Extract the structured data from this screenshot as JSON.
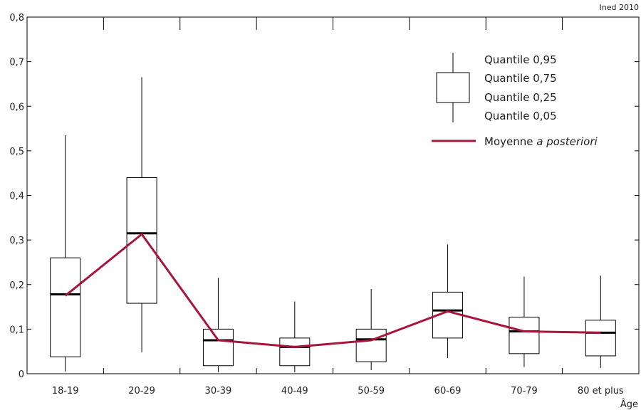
{
  "source": "Ined 2010",
  "chart_data": {
    "type": "boxplot",
    "xlabel": "Âge",
    "ylabel": "",
    "ylim": [
      0,
      0.8
    ],
    "yticks": [
      0,
      0.1,
      0.2,
      0.3,
      0.4,
      0.5,
      0.6,
      0.7,
      0.8
    ],
    "ytick_labels": [
      "0",
      "0,1",
      "0,2",
      "0,3",
      "0,4",
      "0,5",
      "0,6",
      "0,7",
      "0,8"
    ],
    "categories": [
      "18-19",
      "20-29",
      "30-39",
      "40-49",
      "50-59",
      "60-69",
      "70-79",
      "80 et plus"
    ],
    "boxes": [
      {
        "q05": 0.005,
        "q25": 0.038,
        "median": 0.178,
        "q75": 0.26,
        "q95": 0.535
      },
      {
        "q05": 0.048,
        "q25": 0.158,
        "median": 0.315,
        "q75": 0.44,
        "q95": 0.665
      },
      {
        "q05": 0.003,
        "q25": 0.018,
        "median": 0.075,
        "q75": 0.1,
        "q95": 0.215
      },
      {
        "q05": 0.003,
        "q25": 0.018,
        "median": 0.06,
        "q75": 0.08,
        "q95": 0.162
      },
      {
        "q05": 0.008,
        "q25": 0.027,
        "median": 0.077,
        "q75": 0.1,
        "q95": 0.19
      },
      {
        "q05": 0.035,
        "q25": 0.08,
        "median": 0.142,
        "q75": 0.183,
        "q95": 0.29
      },
      {
        "q05": 0.015,
        "q25": 0.045,
        "median": 0.095,
        "q75": 0.127,
        "q95": 0.218
      },
      {
        "q05": 0.013,
        "q25": 0.04,
        "median": 0.092,
        "q75": 0.12,
        "q95": 0.22
      }
    ],
    "series": [
      {
        "name": "Moyenne a posteriori",
        "values": [
          0.175,
          0.313,
          0.075,
          0.06,
          0.075,
          0.14,
          0.095,
          0.092
        ]
      }
    ],
    "legend": {
      "position": "top-right",
      "q95_label": "Quantile 0,95",
      "q75_label": "Quantile 0,75",
      "q25_label": "Quantile 0,25",
      "q05_label": "Quantile 0,05",
      "mean_label_plain": "Moyenne ",
      "mean_label_italic": "a posteriori"
    },
    "colors": {
      "mean_line": "#a8143c",
      "box": "#000000",
      "median": "#000000"
    },
    "grid": false
  }
}
